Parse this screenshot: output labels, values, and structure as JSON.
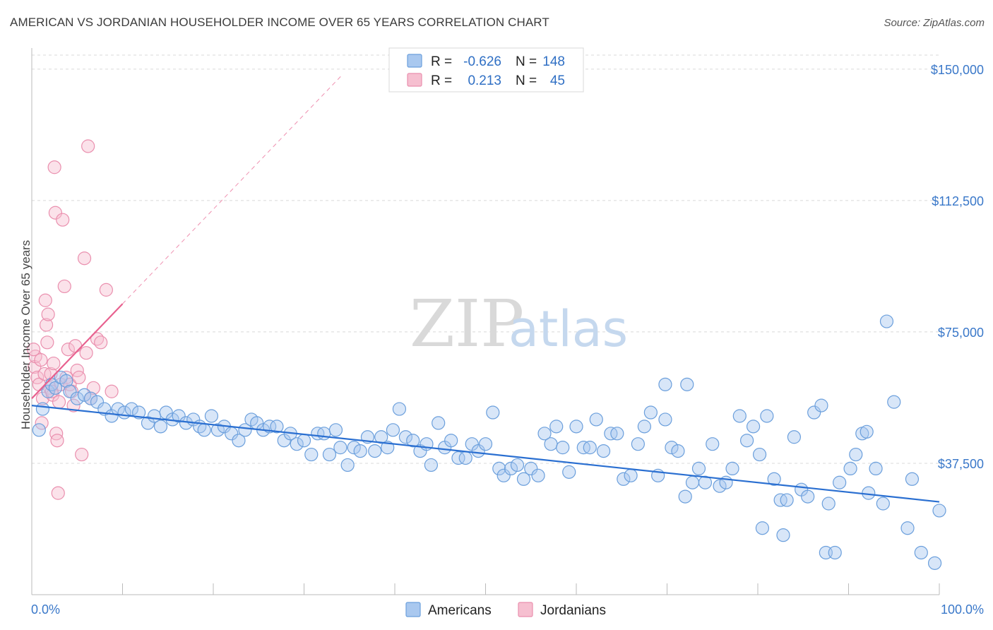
{
  "title": "AMERICAN VS JORDANIAN HOUSEHOLDER INCOME OVER 65 YEARS CORRELATION CHART",
  "source": "Source: ZipAtlas.com",
  "watermark": {
    "zip": "ZIP",
    "atlas": "atlas"
  },
  "colors": {
    "americans_fill": "#a9c8ef",
    "americans_stroke": "#6b9fdc",
    "americans_line": "#2a6fd1",
    "jordanians_fill": "#f6bfd0",
    "jordanians_stroke": "#ea8fae",
    "jordanians_line": "#e8618f",
    "grid": "#d9d9d9",
    "tick_text": "#3a78c9"
  },
  "legend": {
    "rows": [
      {
        "r_label": "R =",
        "r_value": "-0.626",
        "n_label": "N =",
        "n_value": "148"
      },
      {
        "r_label": "R =",
        "r_value": "0.213",
        "n_label": "N =",
        "n_value": "45"
      }
    ]
  },
  "bottom_legend": [
    "Americans",
    "Jordanians"
  ],
  "chart_data": {
    "type": "scatter",
    "ylabel": "Householder Income Over 65 years",
    "x_tick_labels": [
      "0.0%",
      "100.0%"
    ],
    "y_tick_labels": [
      "$37,500",
      "$75,000",
      "$112,500",
      "$150,000"
    ],
    "y_ticks": [
      37500,
      75000,
      112500,
      150000
    ],
    "xlim": [
      0,
      100
    ],
    "ylim": [
      0,
      154000
    ],
    "grid": true,
    "series": [
      {
        "name": "Americans",
        "r": -0.626,
        "n": 148,
        "trend": {
          "x": [
            0,
            100
          ],
          "y": [
            54000,
            26500
          ]
        },
        "points": [
          [
            0.8,
            47000
          ],
          [
            1.2,
            53000
          ],
          [
            1.8,
            58000
          ],
          [
            2.2,
            60000
          ],
          [
            2.6,
            59000
          ],
          [
            3.2,
            62000
          ],
          [
            3.8,
            61000
          ],
          [
            4.2,
            58000
          ],
          [
            5,
            56000
          ],
          [
            5.8,
            57000
          ],
          [
            6.5,
            56000
          ],
          [
            7.2,
            55000
          ],
          [
            8,
            53000
          ],
          [
            8.8,
            51000
          ],
          [
            9.5,
            53000
          ],
          [
            10.2,
            52000
          ],
          [
            11,
            53000
          ],
          [
            11.8,
            52000
          ],
          [
            12.8,
            49000
          ],
          [
            13.5,
            51000
          ],
          [
            14.2,
            48000
          ],
          [
            14.8,
            52000
          ],
          [
            15.5,
            50000
          ],
          [
            16.2,
            51000
          ],
          [
            17,
            49000
          ],
          [
            17.8,
            50000
          ],
          [
            18.5,
            48000
          ],
          [
            19,
            47000
          ],
          [
            19.8,
            51000
          ],
          [
            20.5,
            47000
          ],
          [
            21.2,
            48000
          ],
          [
            22,
            46000
          ],
          [
            22.8,
            44000
          ],
          [
            23.5,
            47000
          ],
          [
            24.2,
            50000
          ],
          [
            24.8,
            49000
          ],
          [
            25.5,
            47000
          ],
          [
            26.2,
            48000
          ],
          [
            27,
            48000
          ],
          [
            27.8,
            44000
          ],
          [
            28.5,
            46000
          ],
          [
            29.2,
            43000
          ],
          [
            30,
            44000
          ],
          [
            30.8,
            40000
          ],
          [
            31.5,
            46000
          ],
          [
            32.2,
            46000
          ],
          [
            32.8,
            40000
          ],
          [
            33.5,
            47000
          ],
          [
            34,
            42000
          ],
          [
            34.8,
            37000
          ],
          [
            35.5,
            42000
          ],
          [
            36.2,
            41000
          ],
          [
            37,
            45000
          ],
          [
            37.8,
            41000
          ],
          [
            38.5,
            45000
          ],
          [
            39.2,
            42000
          ],
          [
            39.8,
            47000
          ],
          [
            40.5,
            53000
          ],
          [
            41.2,
            45000
          ],
          [
            42,
            44000
          ],
          [
            42.8,
            41000
          ],
          [
            43.5,
            43000
          ],
          [
            44,
            37000
          ],
          [
            44.8,
            49000
          ],
          [
            45.5,
            42000
          ],
          [
            46.2,
            44000
          ],
          [
            47,
            39000
          ],
          [
            47.8,
            39000
          ],
          [
            48.5,
            43000
          ],
          [
            49.2,
            41000
          ],
          [
            50,
            43000
          ],
          [
            50.8,
            52000
          ],
          [
            51.5,
            36000
          ],
          [
            52,
            34000
          ],
          [
            52.8,
            36000
          ],
          [
            53.5,
            37000
          ],
          [
            54.2,
            33000
          ],
          [
            55,
            36000
          ],
          [
            55.8,
            34000
          ],
          [
            56.5,
            46000
          ],
          [
            57.2,
            43000
          ],
          [
            57.8,
            48000
          ],
          [
            58.5,
            42000
          ],
          [
            59.2,
            35000
          ],
          [
            60,
            48000
          ],
          [
            60.8,
            42000
          ],
          [
            61.5,
            42000
          ],
          [
            62.2,
            50000
          ],
          [
            63,
            41000
          ],
          [
            63.8,
            46000
          ],
          [
            64.5,
            46000
          ],
          [
            65.2,
            33000
          ],
          [
            66,
            34000
          ],
          [
            66.8,
            43000
          ],
          [
            67.5,
            48000
          ],
          [
            68.2,
            52000
          ],
          [
            69,
            34000
          ],
          [
            69.8,
            50000
          ],
          [
            70.5,
            42000
          ],
          [
            71.2,
            41000
          ],
          [
            72,
            28000
          ],
          [
            72.8,
            32000
          ],
          [
            73.5,
            36000
          ],
          [
            74.2,
            32000
          ],
          [
            75,
            43000
          ],
          [
            75.8,
            31000
          ],
          [
            76.5,
            32000
          ],
          [
            77.2,
            36000
          ],
          [
            78,
            51000
          ],
          [
            78.8,
            44000
          ],
          [
            79.5,
            48000
          ],
          [
            80.2,
            40000
          ],
          [
            81,
            51000
          ],
          [
            81.8,
            33000
          ],
          [
            82.5,
            27000
          ],
          [
            83.2,
            27000
          ],
          [
            84,
            45000
          ],
          [
            84.8,
            30000
          ],
          [
            85.5,
            28000
          ],
          [
            86.2,
            52000
          ],
          [
            87,
            54000
          ],
          [
            87.8,
            26000
          ],
          [
            89,
            32000
          ],
          [
            90.2,
            36000
          ],
          [
            90.8,
            40000
          ],
          [
            91.5,
            46000
          ],
          [
            92.2,
            29000
          ],
          [
            93,
            36000
          ],
          [
            93.8,
            26000
          ],
          [
            94.2,
            78000
          ],
          [
            95,
            55000
          ],
          [
            96.5,
            19000
          ],
          [
            97,
            33000
          ],
          [
            98,
            12000
          ],
          [
            99.5,
            9000
          ],
          [
            72.2,
            60000
          ],
          [
            69.8,
            60000
          ],
          [
            80.5,
            19000
          ],
          [
            82.8,
            17000
          ],
          [
            87.5,
            12000
          ],
          [
            88.5,
            12000
          ],
          [
            100,
            24000
          ],
          [
            92,
            46500
          ]
        ]
      },
      {
        "name": "Jordanians",
        "r": 0.213,
        "n": 45,
        "trend": {
          "x": [
            0,
            10
          ],
          "y": [
            56000,
            83000
          ]
        },
        "points": [
          [
            0.3,
            65000
          ],
          [
            0.4,
            68000
          ],
          [
            0.6,
            62000
          ],
          [
            0.8,
            60000
          ],
          [
            1,
            67000
          ],
          [
            1.2,
            56000
          ],
          [
            1.4,
            63000
          ],
          [
            1.5,
            84000
          ],
          [
            1.6,
            77000
          ],
          [
            1.7,
            72000
          ],
          [
            1.8,
            80000
          ],
          [
            2,
            59000
          ],
          [
            2.1,
            63000
          ],
          [
            2.3,
            57000
          ],
          [
            2.4,
            66000
          ],
          [
            2.5,
            122000
          ],
          [
            2.6,
            109000
          ],
          [
            2.7,
            46000
          ],
          [
            2.8,
            44000
          ],
          [
            2.9,
            29000
          ],
          [
            3,
            55000
          ],
          [
            3.2,
            60000
          ],
          [
            3.4,
            107000
          ],
          [
            3.6,
            88000
          ],
          [
            3.8,
            62000
          ],
          [
            4,
            70000
          ],
          [
            4.2,
            60000
          ],
          [
            4.4,
            58000
          ],
          [
            4.6,
            54000
          ],
          [
            4.8,
            71000
          ],
          [
            5,
            64000
          ],
          [
            5.2,
            62000
          ],
          [
            5.5,
            40000
          ],
          [
            5.8,
            96000
          ],
          [
            6,
            69000
          ],
          [
            6.2,
            128000
          ],
          [
            6.5,
            56000
          ],
          [
            6.8,
            59000
          ],
          [
            7.2,
            73000
          ],
          [
            7.6,
            72000
          ],
          [
            8.2,
            87000
          ],
          [
            8.8,
            58000
          ],
          [
            1.1,
            49000
          ],
          [
            0.2,
            70000
          ],
          [
            2.2,
            58000
          ]
        ]
      }
    ]
  }
}
